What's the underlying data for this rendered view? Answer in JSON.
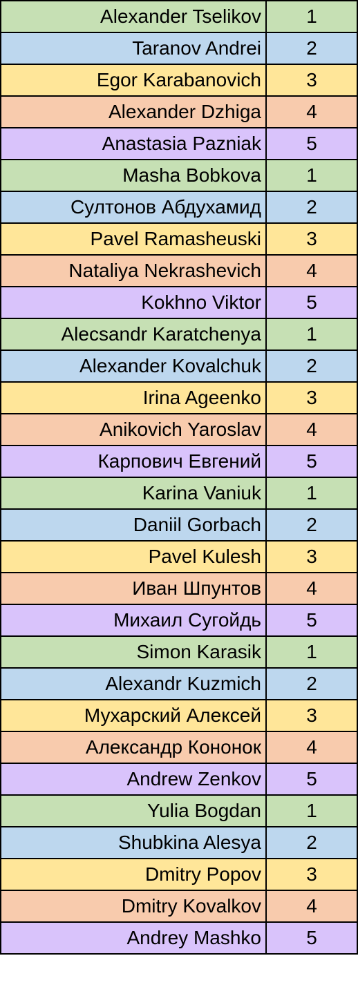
{
  "group_colors": {
    "1": "#c6e0b4",
    "2": "#bdd7ee",
    "3": "#ffe699",
    "4": "#f8cbad",
    "5": "#d9c3fb"
  },
  "rows": [
    {
      "name": "Alexander Tselikov",
      "group": "1"
    },
    {
      "name": "Taranov Andrei",
      "group": "2"
    },
    {
      "name": "Egor Karabanovich",
      "group": "3"
    },
    {
      "name": "Alexander Dzhiga",
      "group": "4"
    },
    {
      "name": "Anastasia Pazniak",
      "group": "5"
    },
    {
      "name": "Masha Bobkova",
      "group": "1"
    },
    {
      "name": "Султонов Абдухамид",
      "group": "2"
    },
    {
      "name": "Pavel Ramasheuski",
      "group": "3"
    },
    {
      "name": "Nataliya Nekrashevich",
      "group": "4"
    },
    {
      "name": "Kokhno Viktor",
      "group": "5"
    },
    {
      "name": "Alecsandr Karatchenya",
      "group": "1"
    },
    {
      "name": "Alexander Kovalchuk",
      "group": "2"
    },
    {
      "name": "Irina Ageenko",
      "group": "3"
    },
    {
      "name": "Anikovich Yaroslav",
      "group": "4"
    },
    {
      "name": "Карпович Евгений",
      "group": "5"
    },
    {
      "name": "Karina Vaniuk",
      "group": "1"
    },
    {
      "name": "Daniil Gorbach",
      "group": "2"
    },
    {
      "name": "Pavel Kulesh",
      "group": "3"
    },
    {
      "name": "Иван Шпунтов",
      "group": "4"
    },
    {
      "name": "Михаил Сугойдь",
      "group": "5"
    },
    {
      "name": "Simon Karasik",
      "group": "1"
    },
    {
      "name": "Alexandr Kuzmich",
      "group": "2"
    },
    {
      "name": "Мухарский Алексей",
      "group": "3"
    },
    {
      "name": "Александр Кононок",
      "group": "4"
    },
    {
      "name": "Andrew Zenkov",
      "group": "5"
    },
    {
      "name": "Yulia Bogdan",
      "group": "1"
    },
    {
      "name": "Shubkina Alesya",
      "group": "2"
    },
    {
      "name": "Dmitry Popov",
      "group": "3"
    },
    {
      "name": "Dmitry Kovalkov",
      "group": "4"
    },
    {
      "name": "Andrey Mashko",
      "group": "5"
    }
  ]
}
